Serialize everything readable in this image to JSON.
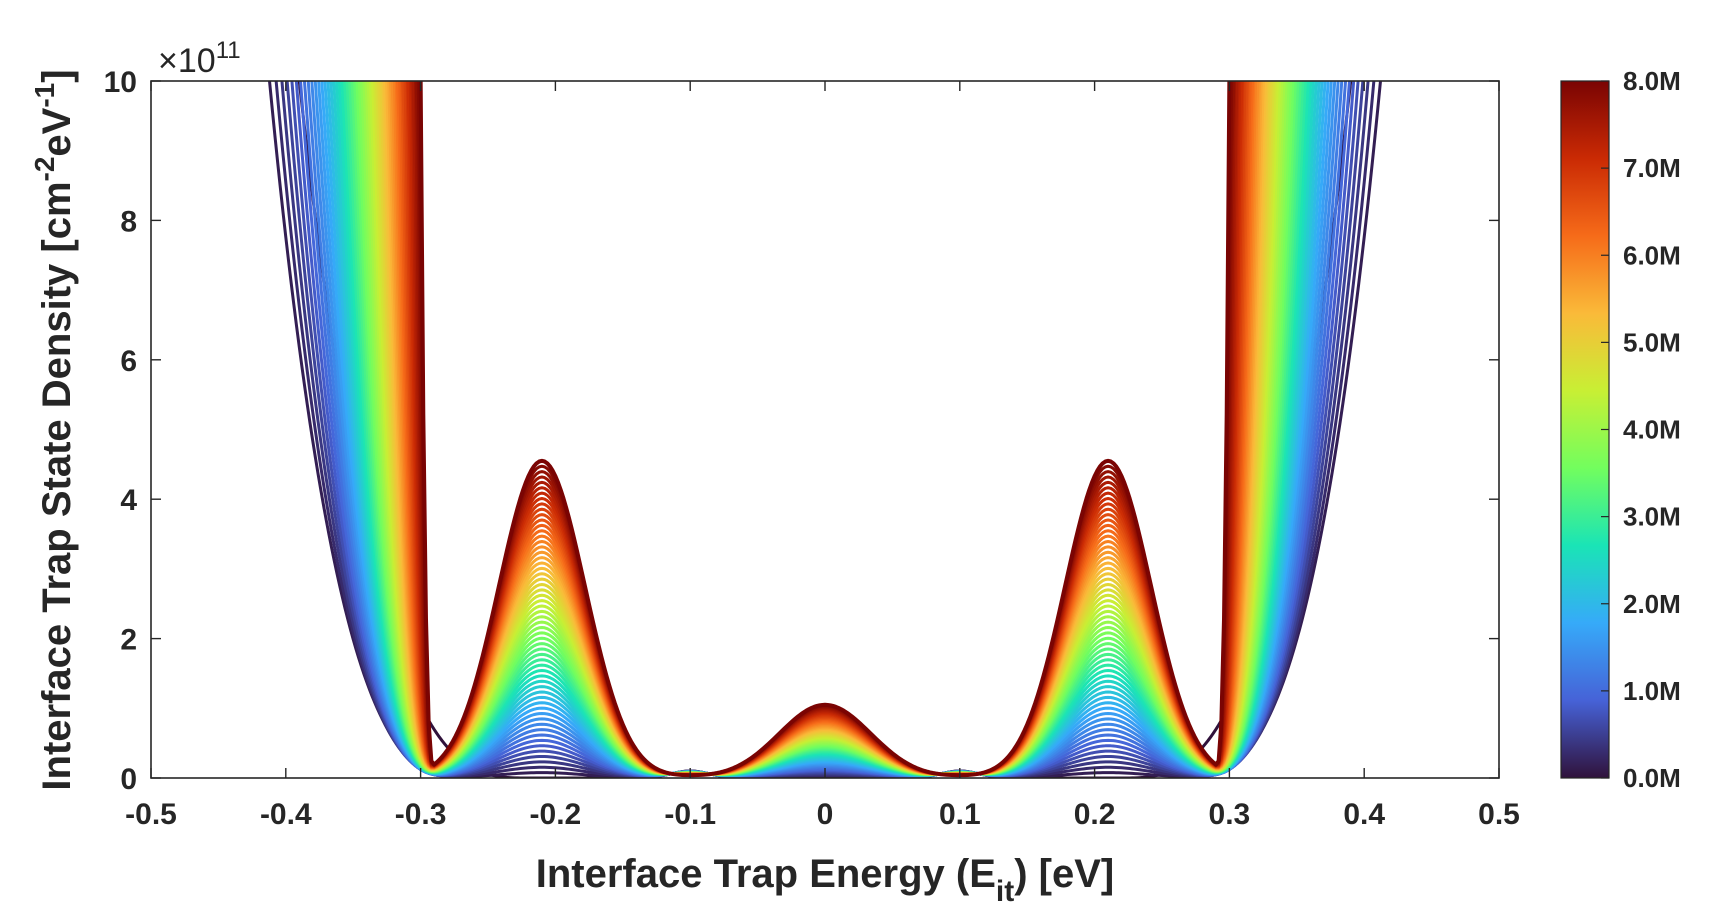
{
  "chart_data": {
    "type": "line",
    "title": "",
    "xlabel_main": "Interface Trap Energy (E",
    "xlabel_sub": "it",
    "xlabel_end": ") [eV]",
    "ylabel_main": "Interface Trap State Density [cm",
    "ylabel_sup1": "-2",
    "ylabel_mid": "eV",
    "ylabel_sup2": "-1",
    "ylabel_end": "]",
    "y_multiplier_base": "×10",
    "y_multiplier_exp": "11",
    "xlim": [
      -0.5,
      0.5
    ],
    "ylim": [
      0,
      10
    ],
    "x_ticks": [
      "-0.5",
      "-0.4",
      "-0.3",
      "-0.2",
      "-0.1",
      "0",
      "0.1",
      "0.2",
      "0.3",
      "0.4",
      "0.5"
    ],
    "y_ticks": [
      "0",
      "2",
      "4",
      "6",
      "8",
      "10"
    ],
    "colorbar": {
      "label_ticks": [
        "0.0M",
        "1.0M",
        "2.0M",
        "3.0M",
        "4.0M",
        "5.0M",
        "6.0M",
        "7.0M",
        "8.0M"
      ],
      "range": [
        0,
        8
      ],
      "colors": [
        "#30123b",
        "#4662d7",
        "#36aaf9",
        "#1ae4b6",
        "#72fe5e",
        "#c8ef34",
        "#faba39",
        "#f66b19",
        "#ca2a04",
        "#7a0403"
      ]
    },
    "series_description": "Family of curves parameterized by the colorbar value (0.0M to 8.0M). Low values: U-shaped density diverging at |E| about 0.30-0.45 eV. High values: peaks of about 4.55 at E = +/-0.21 eV and about 1.05 at E = 0, minima near 0 at E = +/-0.1 and +/-0.28 eV.",
    "peaks": [
      {
        "x": -0.21,
        "y": 4.55
      },
      {
        "x": 0.0,
        "y": 1.05
      },
      {
        "x": 0.21,
        "y": 4.55
      }
    ],
    "minima": [
      {
        "x": -0.28,
        "y": 0.0
      },
      {
        "x": -0.1,
        "y": 0.0
      },
      {
        "x": 0.1,
        "y": 0.0
      },
      {
        "x": 0.28,
        "y": 0.0
      }
    ],
    "series_count": 60
  }
}
